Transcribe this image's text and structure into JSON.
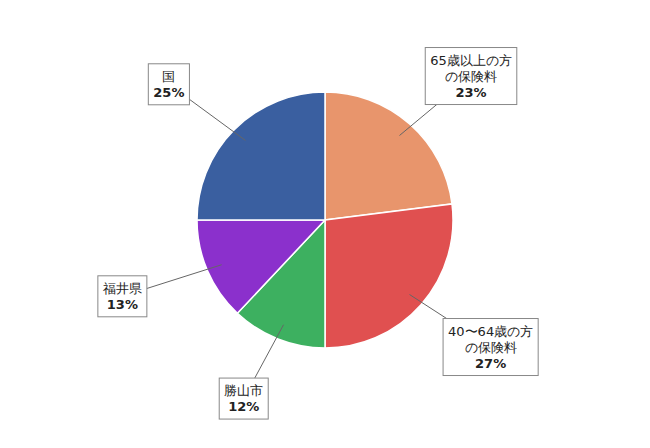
{
  "chart_data": {
    "type": "pie",
    "categories": [
      "65歳以上の方\nの保険料",
      "40〜64歳の方\nの保険料",
      "勝山市",
      "福井県",
      "国"
    ],
    "values": [
      23,
      27,
      12,
      13,
      25
    ],
    "value_labels": [
      "23%",
      "27%",
      "12%",
      "13%",
      "25%"
    ],
    "colors": [
      "#E8956C",
      "#E05050",
      "#3DB060",
      "#8B30CC",
      "#3A5FA0"
    ],
    "data_labels": true
  }
}
